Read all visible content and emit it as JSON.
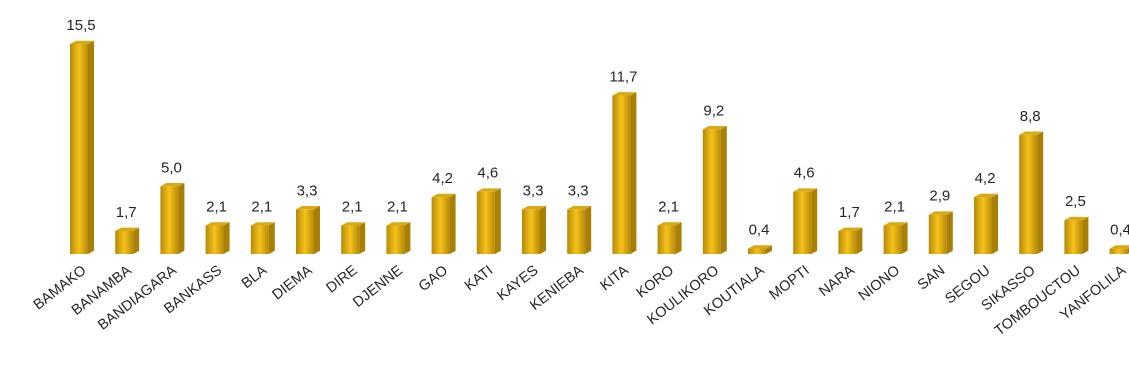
{
  "chart_data": {
    "type": "bar",
    "title": "",
    "xlabel": "",
    "ylabel": "",
    "categories": [
      "BAMAKO",
      "BANAMBA",
      "BANDIAGARA",
      "BANKASS",
      "BLA",
      "DIEMA",
      "DIRE",
      "DJENNE",
      "GAO",
      "KATI",
      "KAYES",
      "KENIEBA",
      "KITA",
      "KORO",
      "KOULIKORO",
      "KOUTIALA",
      "MOPTI",
      "NARA",
      "NIONO",
      "SAN",
      "SEGOU",
      "SIKASSO",
      "TOMBOUCTOU",
      "YANFOLILA"
    ],
    "values": [
      15.5,
      1.7,
      5.0,
      2.1,
      2.1,
      3.3,
      2.1,
      2.1,
      4.2,
      4.6,
      3.3,
      3.3,
      11.7,
      2.1,
      9.2,
      0.4,
      4.6,
      1.7,
      2.1,
      2.9,
      4.2,
      8.8,
      2.5,
      0.4
    ],
    "value_labels": [
      "15,5",
      "1,7",
      "5,0",
      "2,1",
      "2,1",
      "3,3",
      "2,1",
      "2,1",
      "4,2",
      "4,6",
      "3,3",
      "3,3",
      "11,7",
      "2,1",
      "9,2",
      "0,4",
      "4,6",
      "1,7",
      "2,1",
      "2,9",
      "4,2",
      "8,8",
      "2,5",
      "0,4"
    ],
    "ylim": [
      0,
      15.5
    ],
    "grid": false,
    "legend": "none",
    "colors": {
      "bar_front_center": "#f6c21a",
      "bar_front_edge": "#b58a08",
      "bar_side": "#a97f06",
      "bar_top": "#d9a914",
      "text": "#262626"
    }
  }
}
